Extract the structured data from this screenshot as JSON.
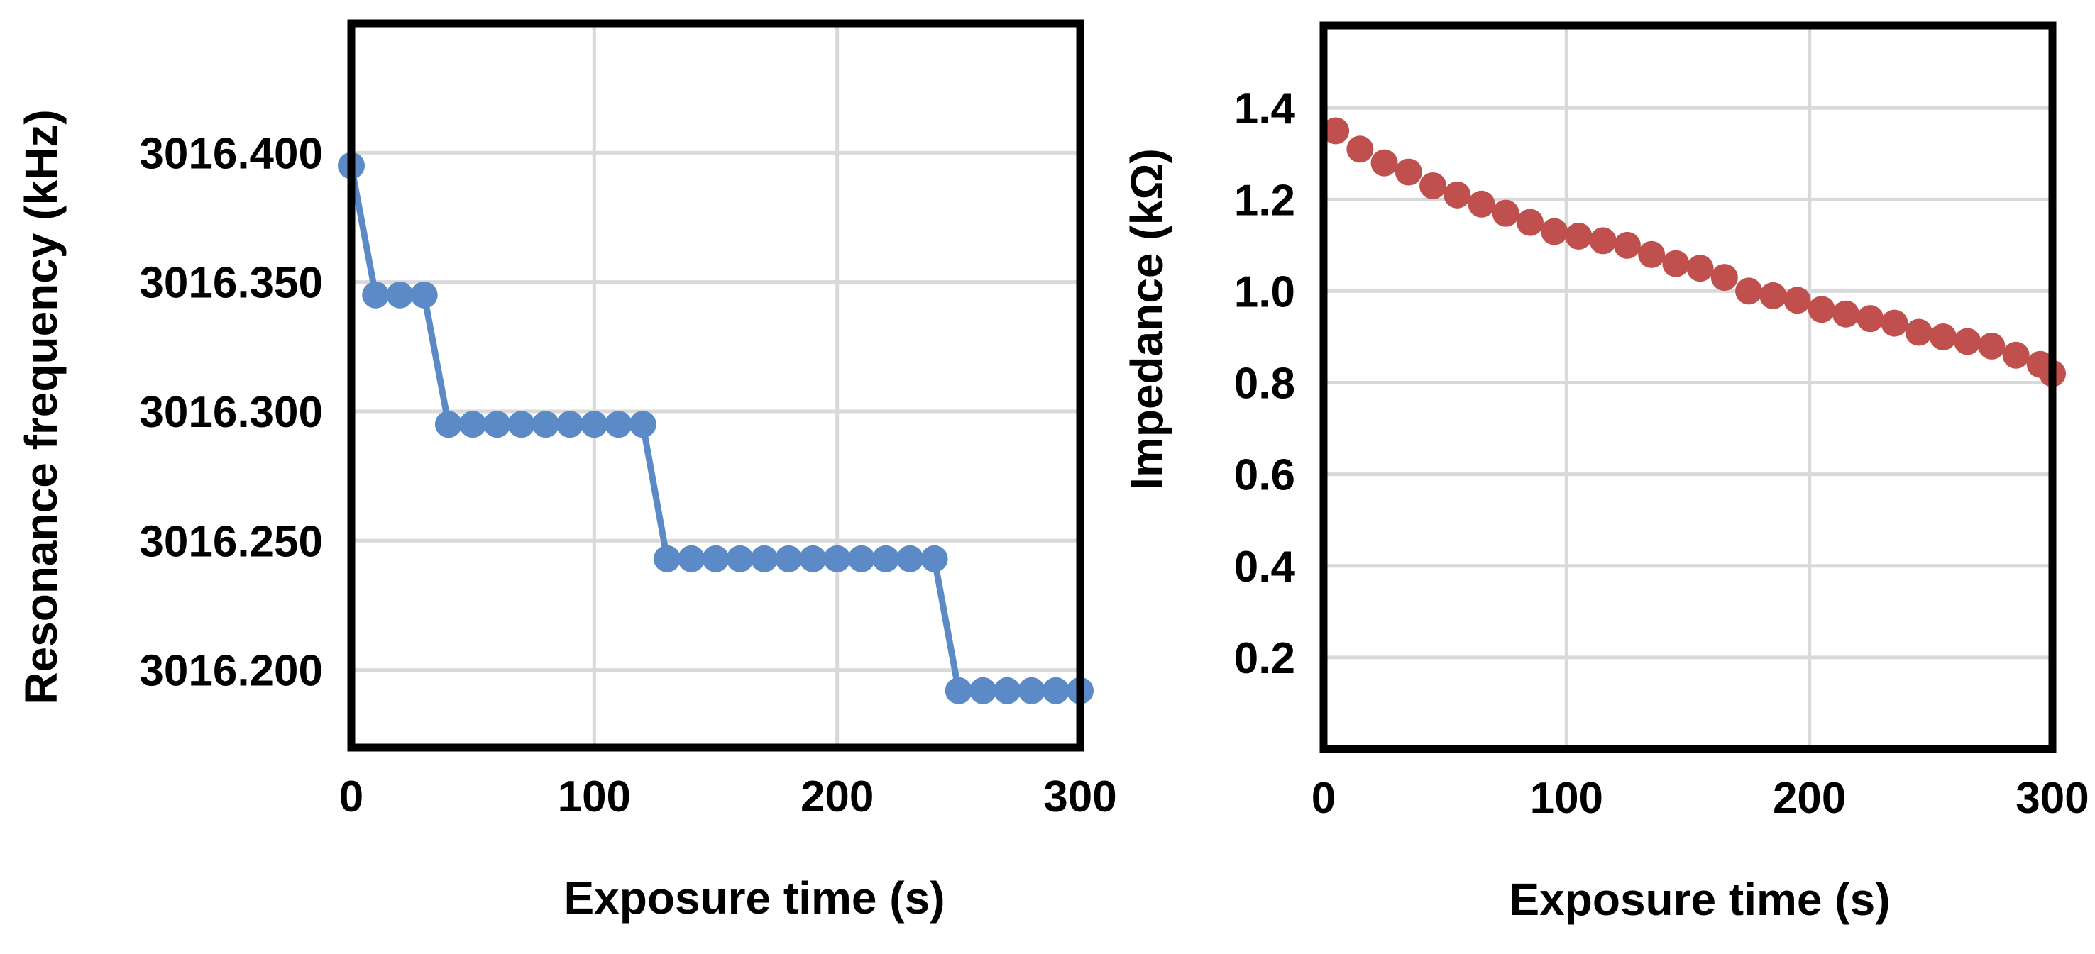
{
  "chart_data": [
    {
      "type": "line",
      "title": "",
      "xlabel": "Exposure time (s)",
      "ylabel": "Resonance frequency (kHz)",
      "xlim": [
        0,
        300
      ],
      "ylim": [
        3016.17,
        3016.45
      ],
      "x_ticks": [
        "0",
        "100",
        "200",
        "300"
      ],
      "y_ticks": [
        "3016.400",
        "3016.350",
        "3016.300",
        "3016.250",
        "3016.200"
      ],
      "grid": true,
      "legend": "none",
      "color": "#5b8ac6",
      "series": [
        {
          "x": [
            0,
            10,
            20,
            30,
            40,
            50,
            60,
            70,
            80,
            90,
            100,
            110,
            120,
            130,
            140,
            150,
            160,
            170,
            180,
            190,
            200,
            210,
            220,
            230,
            240,
            250,
            260,
            270,
            280,
            290,
            300
          ],
          "y": [
            3016.395,
            3016.345,
            3016.345,
            3016.345,
            3016.295,
            3016.295,
            3016.295,
            3016.295,
            3016.295,
            3016.295,
            3016.295,
            3016.295,
            3016.295,
            3016.243,
            3016.243,
            3016.243,
            3016.243,
            3016.243,
            3016.243,
            3016.243,
            3016.243,
            3016.243,
            3016.243,
            3016.243,
            3016.243,
            3016.192,
            3016.192,
            3016.192,
            3016.192,
            3016.192,
            3016.192
          ]
        }
      ]
    },
    {
      "type": "scatter",
      "title": "",
      "xlabel": "Exposure time (s)",
      "ylabel": "Impedance (kΩ)",
      "xlim": [
        0,
        300
      ],
      "ylim": [
        0,
        1.58
      ],
      "x_ticks": [
        "0",
        "100",
        "200",
        "300"
      ],
      "y_ticks": [
        "1.4",
        "1.2",
        "1.0",
        "0.8",
        "0.6",
        "0.4",
        "0.2"
      ],
      "grid": true,
      "legend": "none",
      "color": "#c0504d",
      "series": [
        {
          "x": [
            5,
            15,
            25,
            35,
            45,
            55,
            65,
            75,
            85,
            95,
            105,
            115,
            125,
            135,
            145,
            155,
            165,
            175,
            185,
            195,
            205,
            215,
            225,
            235,
            245,
            255,
            265,
            275,
            285,
            295,
            300
          ],
          "y": [
            1.35,
            1.31,
            1.28,
            1.26,
            1.23,
            1.21,
            1.19,
            1.17,
            1.15,
            1.13,
            1.12,
            1.11,
            1.1,
            1.08,
            1.06,
            1.05,
            1.03,
            1.0,
            0.99,
            0.98,
            0.96,
            0.95,
            0.94,
            0.93,
            0.91,
            0.9,
            0.89,
            0.88,
            0.86,
            0.84,
            0.82
          ]
        }
      ]
    }
  ]
}
